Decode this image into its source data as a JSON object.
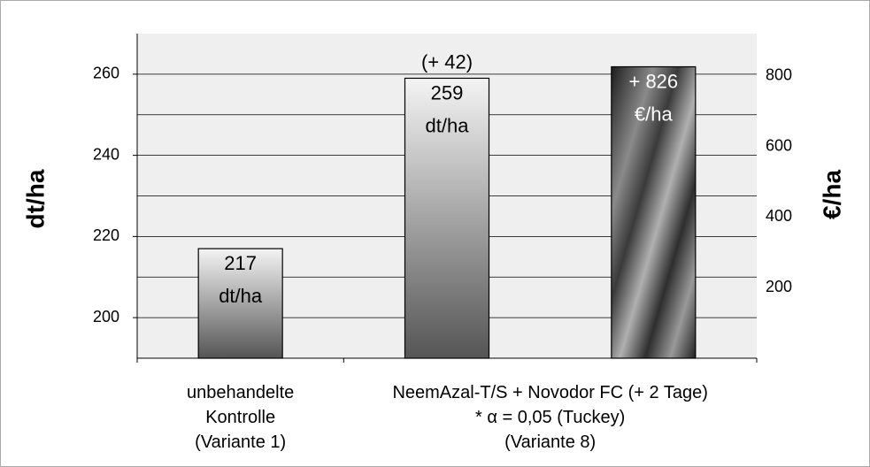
{
  "chart_data": {
    "type": "bar",
    "categories": [
      "unbehandelte\nKontrolle\n(Variante 1)",
      "NeemAzal-T/S + Novodor FC (+ 2 Tage)\n* α = 0,05 (Tuckey)\n(Variante 8)"
    ],
    "series": [
      {
        "color": "#555555",
        "values": [
          217,
          259
        ],
        "value_labels": [
          "217 dt/ha",
          "259 dt/ha"
        ]
      },
      {
        "color": "#2e2e2e",
        "values": [
          null,
          826
        ],
        "value_labels": [
          null,
          "+ 826 €/ha"
        ],
        "axis": "y2"
      }
    ],
    "annotation": "(+ 42)",
    "ylabel": "dt/ha",
    "y2label": "€/ha",
    "ylim": [
      190,
      270
    ],
    "yticks": [
      200,
      220,
      240,
      260
    ],
    "minor_yticks": [
      210,
      230,
      250
    ],
    "y2lim": [
      0,
      920
    ],
    "y2ticks": [
      200,
      400,
      600,
      800
    ],
    "grid": true
  }
}
